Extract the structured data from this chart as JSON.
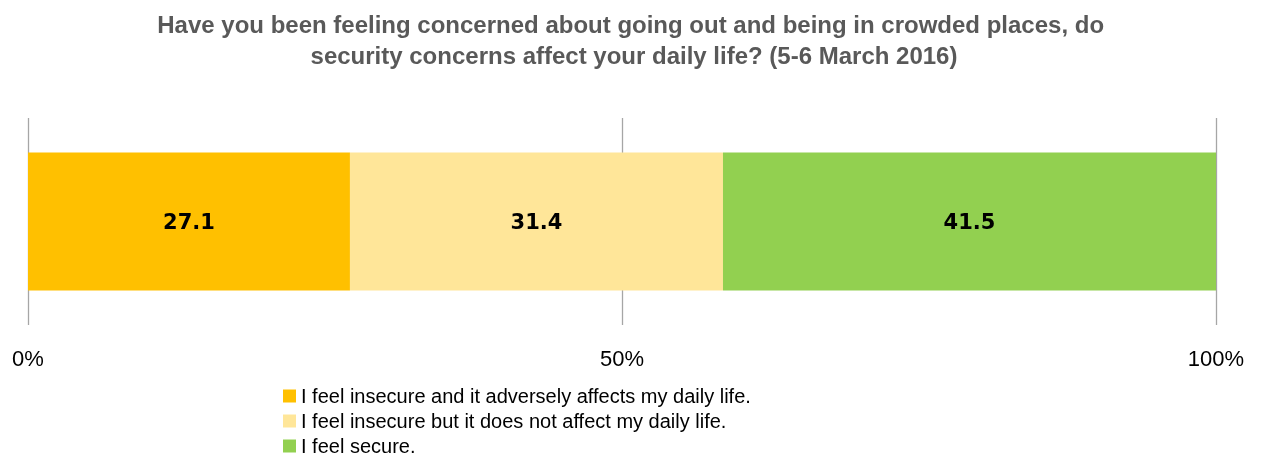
{
  "chart_data": {
    "type": "bar",
    "title": "Have you been feeling concerned about going out and being in crowded places, do security concerns affect your daily life? (5-6 March 2016)",
    "orientation": "horizontal",
    "stacked": true,
    "categories": [
      null
    ],
    "series": [
      {
        "name": "I feel insecure and it adversely affects my daily life.",
        "color": "#ffc000",
        "values": [
          27.1
        ]
      },
      {
        "name": "I feel insecure but it does not affect my daily life.",
        "color": "#ffe699",
        "values": [
          31.4
        ]
      },
      {
        "name": "I feel secure.",
        "color": "#92d050",
        "values": [
          41.5
        ]
      }
    ],
    "xlim": [
      0,
      100
    ],
    "xticks": [
      {
        "value": 0,
        "label": "0%"
      },
      {
        "value": 50,
        "label": "50%"
      },
      {
        "value": 100,
        "label": "100%"
      }
    ],
    "grid": "x",
    "legend": "bottom",
    "data_labels": true
  }
}
